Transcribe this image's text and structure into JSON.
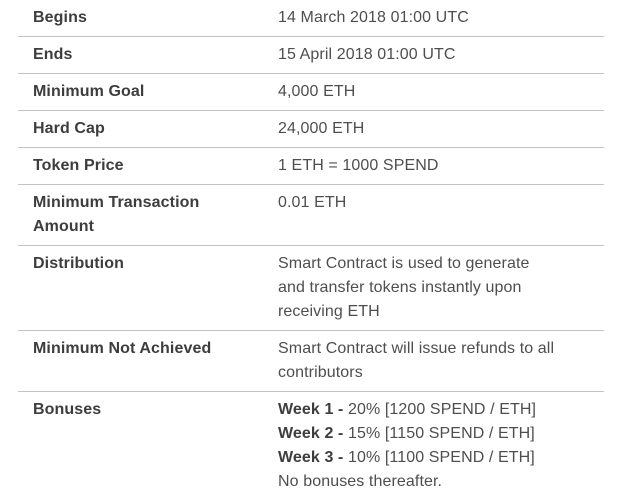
{
  "table": {
    "name": "ico-details",
    "rows": [
      {
        "label": "Begins",
        "lines": [
          "14 March 2018 01:00 UTC"
        ]
      },
      {
        "label": "Ends",
        "lines": [
          "15 April 2018 01:00 UTC"
        ]
      },
      {
        "label": "Minimum Goal",
        "lines": [
          "4,000 ETH"
        ]
      },
      {
        "label": "Hard Cap",
        "lines": [
          "24,000 ETH"
        ]
      },
      {
        "label": "Token Price",
        "lines": [
          "1 ETH = 1000 SPEND"
        ]
      },
      {
        "label": "Minimum Transaction Amount",
        "lines": [
          "0.01 ETH"
        ]
      },
      {
        "label": "Distribution",
        "lines": [
          "Smart Contract is used to generate",
          "and transfer tokens instantly upon",
          "receiving ETH"
        ]
      },
      {
        "label": "Minimum Not Achieved",
        "lines": [
          "Smart Contract will issue refunds to all",
          "contributors"
        ]
      },
      {
        "label": "Bonuses",
        "lines": [
          {
            "bold": "Week 1 - ",
            "text": "20% [1200 SPEND / ETH]"
          },
          {
            "bold": "Week 2 - ",
            "text": "15% [1150 SPEND / ETH]"
          },
          {
            "bold": "Week 3 - ",
            "text": "10% [1100 SPEND / ETH]"
          },
          {
            "bold": "",
            "text": "No bonuses thereafter."
          }
        ]
      }
    ]
  },
  "colors": {
    "background": "#ffffff",
    "label_text": "#3d3d3d",
    "value_text": "#4e4e4e",
    "divider": "#c3c3c3"
  }
}
